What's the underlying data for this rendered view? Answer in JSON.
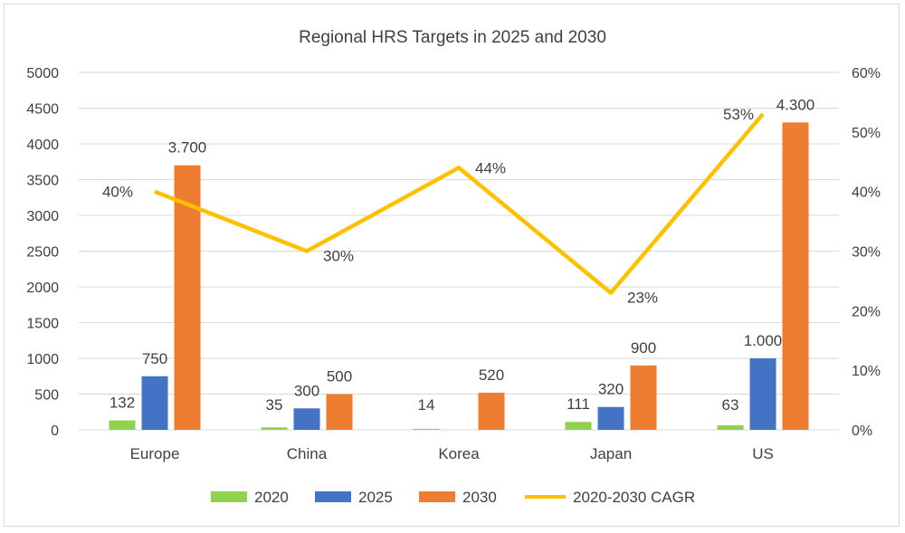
{
  "chart_data": {
    "type": "bar",
    "title": "Regional HRS Targets in 2025 and 2030",
    "categories": [
      "Europe",
      "China",
      "Korea",
      "Japan",
      "US"
    ],
    "ylim": [
      0,
      5000
    ],
    "y_ticks": [
      "0",
      "500",
      "1000",
      "1500",
      "2000",
      "2500",
      "3000",
      "3500",
      "4000",
      "4500",
      "5000"
    ],
    "y2lim": [
      0,
      60
    ],
    "y2_ticks": [
      "0%",
      "10%",
      "20%",
      "30%",
      "40%",
      "50%",
      "60%"
    ],
    "grid": true,
    "legend_position": "bottom",
    "series": [
      {
        "name": "2020",
        "type": "bar",
        "axis": "left",
        "color": "#92d050",
        "values": [
          132,
          35,
          14,
          111,
          63
        ],
        "labels": [
          "132",
          "35",
          "14",
          "111",
          "63"
        ]
      },
      {
        "name": "2025",
        "type": "bar",
        "axis": "left",
        "color": "#4472c4",
        "values": [
          750,
          300,
          null,
          320,
          1000
        ],
        "labels": [
          "750",
          "300",
          "",
          "320",
          "1.000"
        ]
      },
      {
        "name": "2030",
        "type": "bar",
        "axis": "left",
        "color": "#ed7d31",
        "values": [
          3700,
          500,
          520,
          900,
          4300
        ],
        "labels": [
          "3.700",
          "500",
          "520",
          "900",
          "4.300"
        ]
      },
      {
        "name": "2020-2030 CAGR",
        "type": "line",
        "axis": "right",
        "color": "#ffc000",
        "values": [
          40,
          30,
          44,
          23,
          53
        ],
        "labels": [
          "40%",
          "30%",
          "44%",
          "23%",
          "53%"
        ]
      }
    ]
  }
}
